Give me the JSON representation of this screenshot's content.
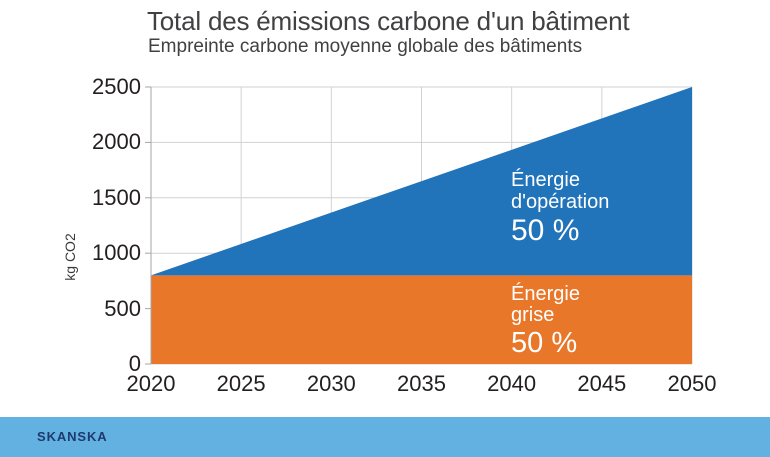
{
  "header": {
    "title": "Total des émissions carbone d'un bâtiment",
    "subtitle": "Empreinte carbone moyenne globale des bâtiments"
  },
  "chart_data": {
    "type": "area",
    "stacked": true,
    "title": "Total des émissions carbone d'un bâtiment",
    "subtitle": "Empreinte carbone moyenne globale des bâtiments",
    "xlabel": "",
    "ylabel": "kg CO2",
    "x": [
      2020,
      2050
    ],
    "xlim": [
      2020,
      2050
    ],
    "ylim": [
      0,
      2500
    ],
    "x_ticks": [
      2020,
      2025,
      2030,
      2035,
      2040,
      2045,
      2050
    ],
    "y_ticks": [
      0,
      500,
      1000,
      1500,
      2000,
      2500
    ],
    "grid": true,
    "legend_position": "in-area labels",
    "series": [
      {
        "name": "Énergie grise",
        "share_label": "50 %",
        "values": [
          800,
          800
        ],
        "color": "#e8772a"
      },
      {
        "name": "Énergie d'opération",
        "share_label": "50 %",
        "values": [
          0,
          1700
        ],
        "color": "#2173ba"
      }
    ],
    "total_at_2050": 2500,
    "total_at_2020": 800
  },
  "area_labels": {
    "operation": {
      "line1": "Énergie",
      "line2": "d'opération",
      "pct": "50 %"
    },
    "grise": {
      "line1": "Énergie",
      "line2": "grise",
      "pct": "50 %"
    }
  },
  "footer": {
    "logo": "SKANSKA"
  },
  "colors": {
    "blue_area": "#2173ba",
    "orange_area": "#e8772a",
    "grid": "#d2d2d2",
    "axis": "#a6a6a6",
    "text_dark": "#414042",
    "tick_text": "#231f20",
    "area_label_text": "#ffffff",
    "footer_bar": "#63b1e1",
    "logo_navy": "#1d3a70",
    "background": "#ffffff"
  }
}
